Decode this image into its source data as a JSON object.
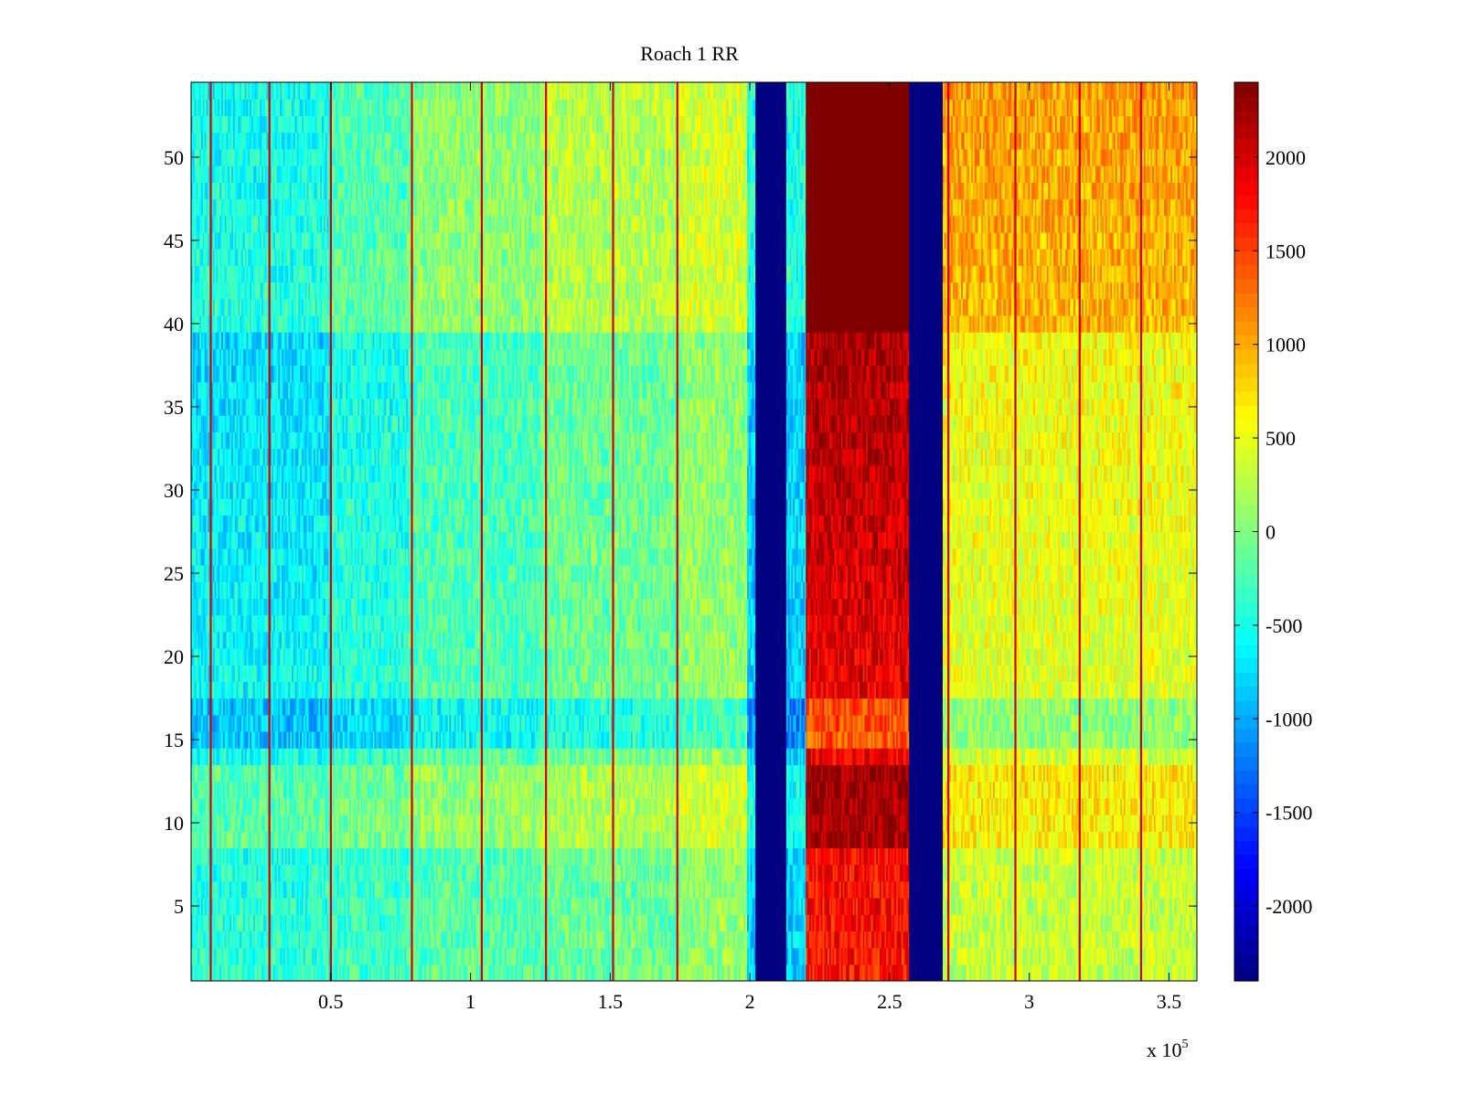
{
  "chart_data": {
    "type": "heatmap",
    "title": "Roach 1 RR",
    "xlabel": "",
    "ylabel": "",
    "x_multiplier_label": "x 10",
    "x_multiplier_exponent": "5",
    "xlim": [
      0,
      3.6
    ],
    "ylim": [
      0.5,
      54.5
    ],
    "x_ticks": [
      0.5,
      1,
      1.5,
      2,
      2.5,
      3,
      3.5
    ],
    "x_tick_labels": [
      "0.5",
      "1",
      "1.5",
      "2",
      "2.5",
      "3",
      "3.5"
    ],
    "y_ticks": [
      5,
      10,
      15,
      20,
      25,
      30,
      35,
      40,
      45,
      50
    ],
    "y_tick_labels": [
      "5",
      "10",
      "15",
      "20",
      "25",
      "30",
      "35",
      "40",
      "45",
      "50"
    ],
    "colorbar": {
      "colormap": "jet",
      "clim": [
        -2400,
        2400
      ],
      "ticks": [
        -2000,
        -1500,
        -1000,
        -500,
        0,
        500,
        1000,
        1500,
        2000
      ],
      "tick_labels": [
        "-2000",
        "-1500",
        "-1000",
        "-500",
        "0",
        "500",
        "1000",
        "1500",
        "2000"
      ]
    },
    "rows": 54,
    "x_segments": [
      {
        "x_start": 0.0,
        "x_end": 0.5,
        "value_at_row1": -400,
        "value_at_row54": -900
      },
      {
        "x_start": 0.5,
        "x_end": 0.78,
        "value_at_row1": -300,
        "value_at_row54": -600
      },
      {
        "x_start": 0.78,
        "x_end": 1.25,
        "value_at_row1": -200,
        "value_at_row54": -300
      },
      {
        "x_start": 1.25,
        "x_end": 1.75,
        "value_at_row1": -100,
        "value_at_row54": -100
      },
      {
        "x_start": 1.75,
        "x_end": 1.99,
        "value_at_row1": 100,
        "value_at_row54": 50
      },
      {
        "x_start": 1.99,
        "x_end": 2.02,
        "value_at_row1": -800,
        "value_at_row54": -800
      },
      {
        "x_start": 2.02,
        "x_end": 2.13,
        "value_at_row1": -2400,
        "value_at_row54": -2400
      },
      {
        "x_start": 2.13,
        "x_end": 2.2,
        "value_at_row1": -800,
        "value_at_row54": -800
      },
      {
        "x_start": 2.2,
        "x_end": 2.57,
        "value_at_row1": 1700,
        "value_at_row54": 2400
      },
      {
        "x_start": 2.57,
        "x_end": 2.69,
        "value_at_row1": -2400,
        "value_at_row54": -2400
      },
      {
        "x_start": 2.69,
        "x_end": 3.6,
        "value_at_row1": 300,
        "value_at_row54": 700
      }
    ],
    "row_modulation": [
      {
        "rows": [
          9,
          13
        ],
        "offset": 300
      },
      {
        "rows": [
          15,
          17
        ],
        "offset": -350
      },
      {
        "rows": [
          40,
          54
        ],
        "offset": 350
      }
    ],
    "stripe_lines": {
      "value": 2000,
      "x_positions": [
        0.07,
        0.28,
        0.5,
        0.79,
        1.04,
        1.27,
        1.51,
        1.74,
        2.71,
        2.95,
        3.18,
        3.4
      ]
    }
  }
}
